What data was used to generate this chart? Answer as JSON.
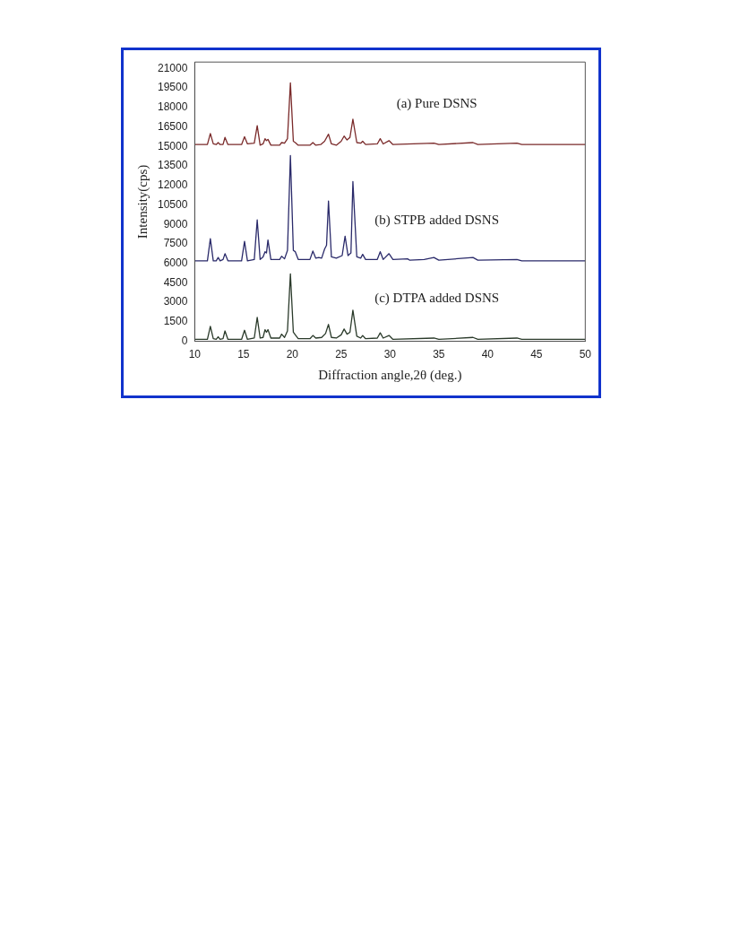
{
  "chart_data": {
    "type": "line",
    "xlabel": "Diffraction angle,2θ (deg.)",
    "ylabel": "Intensity(cps)",
    "xlim": [
      10,
      50
    ],
    "xticks": [
      10,
      15,
      20,
      25,
      30,
      35,
      40,
      45,
      50
    ],
    "ylim": [
      0,
      21500
    ],
    "yticks": [
      0,
      1500,
      3000,
      4500,
      6000,
      7500,
      9000,
      10500,
      12000,
      13500,
      15000,
      16500,
      18000,
      19500,
      21000
    ],
    "grid": false,
    "legend": false,
    "series": [
      {
        "name": "(a) Pure DSNS",
        "color": "#7a2a2a",
        "x": [
          10,
          11.3,
          11.6,
          11.9,
          12.2,
          12.4,
          12.6,
          12.9,
          13.1,
          13.4,
          14.8,
          15.1,
          15.4,
          16.1,
          16.4,
          16.7,
          17.0,
          17.2,
          17.35,
          17.5,
          17.8,
          18.7,
          18.9,
          19.2,
          19.5,
          19.8,
          20.1,
          20.3,
          20.6,
          21.8,
          22.1,
          22.4,
          22.9,
          23.3,
          23.7,
          24.0,
          24.5,
          25.0,
          25.3,
          25.6,
          25.9,
          26.2,
          26.6,
          27.0,
          27.2,
          27.5,
          28.7,
          29.0,
          29.3,
          29.9,
          30.3,
          34.5,
          35,
          38.5,
          39,
          43,
          43.5,
          50
        ],
        "values": [
          15150,
          15150,
          16000,
          15200,
          15150,
          15300,
          15150,
          15150,
          15700,
          15150,
          15150,
          15750,
          15200,
          15250,
          16600,
          15100,
          15200,
          15600,
          15450,
          15550,
          15100,
          15100,
          15300,
          15250,
          15600,
          19900,
          15400,
          15300,
          15100,
          15100,
          15300,
          15100,
          15150,
          15400,
          15950,
          15200,
          15100,
          15400,
          15800,
          15500,
          15700,
          17100,
          15300,
          15250,
          15400,
          15150,
          15200,
          15600,
          15200,
          15450,
          15150,
          15250,
          15150,
          15300,
          15150,
          15250,
          15150,
          15150
        ]
      },
      {
        "name": "(b) STPB added DSNS",
        "color": "#2a2a6a",
        "x": [
          10,
          11.3,
          11.6,
          11.9,
          12.2,
          12.4,
          12.6,
          12.9,
          13.1,
          13.4,
          14.8,
          15.1,
          15.4,
          16.1,
          16.4,
          16.7,
          17.0,
          17.2,
          17.35,
          17.5,
          17.8,
          18.7,
          18.9,
          19.2,
          19.5,
          19.8,
          20.1,
          20.3,
          20.6,
          21.8,
          22.1,
          22.4,
          22.7,
          23.0,
          23.3,
          23.5,
          23.7,
          24.0,
          24.5,
          25.1,
          25.4,
          25.7,
          26.0,
          26.2,
          26.6,
          27.0,
          27.2,
          27.5,
          28.7,
          29.0,
          29.3,
          29.9,
          30.3,
          31.8,
          32,
          33.5,
          34.5,
          35,
          38.5,
          39,
          43,
          43.5,
          50
        ],
        "values": [
          6200,
          6200,
          7900,
          6200,
          6200,
          6450,
          6200,
          6300,
          6750,
          6200,
          6200,
          7700,
          6200,
          6300,
          9350,
          6300,
          6500,
          6900,
          6800,
          7800,
          6300,
          6300,
          6550,
          6350,
          7000,
          14300,
          7000,
          6900,
          6300,
          6300,
          6950,
          6400,
          6450,
          6400,
          7100,
          7400,
          10800,
          6500,
          6400,
          6600,
          8100,
          6600,
          6800,
          12300,
          6500,
          6400,
          6700,
          6300,
          6300,
          6900,
          6300,
          6750,
          6300,
          6350,
          6250,
          6300,
          6450,
          6250,
          6450,
          6250,
          6300,
          6200,
          6200
        ]
      },
      {
        "name": "(c) DTPA added DSNS",
        "color": "#2a3a2a",
        "x": [
          10,
          11.3,
          11.6,
          11.9,
          12.2,
          12.4,
          12.6,
          12.9,
          13.1,
          13.4,
          14.8,
          15.1,
          15.4,
          16.1,
          16.4,
          16.7,
          17.0,
          17.2,
          17.35,
          17.5,
          17.8,
          18.7,
          18.9,
          19.2,
          19.5,
          19.8,
          20.1,
          20.3,
          20.6,
          21.8,
          22.1,
          22.4,
          23.0,
          23.4,
          23.7,
          24.0,
          24.5,
          25.0,
          25.3,
          25.6,
          25.9,
          26.2,
          26.6,
          27.0,
          27.2,
          27.5,
          28.7,
          29.0,
          29.3,
          29.9,
          30.3,
          34.5,
          35,
          38.5,
          39,
          43,
          43.5,
          50
        ],
        "values": [
          150,
          150,
          1150,
          200,
          150,
          350,
          150,
          200,
          800,
          150,
          150,
          850,
          150,
          250,
          1850,
          250,
          300,
          900,
          700,
          900,
          250,
          250,
          550,
          300,
          800,
          5200,
          700,
          500,
          200,
          200,
          450,
          250,
          300,
          600,
          1300,
          300,
          250,
          500,
          950,
          550,
          700,
          2400,
          400,
          250,
          450,
          200,
          250,
          650,
          250,
          450,
          150,
          250,
          150,
          300,
          150,
          250,
          150,
          150
        ]
      }
    ]
  }
}
